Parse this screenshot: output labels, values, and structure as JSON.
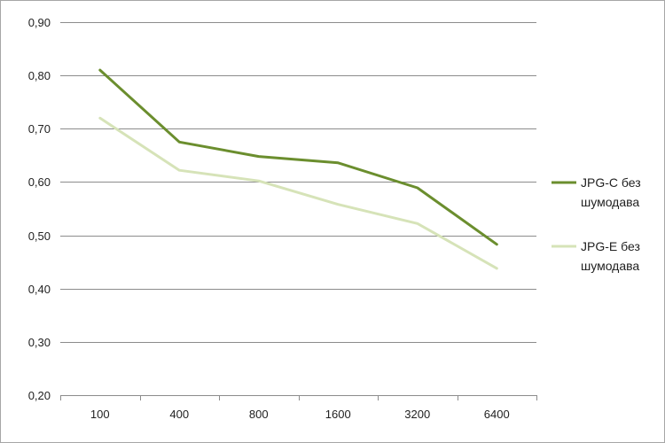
{
  "chart_data": {
    "type": "line",
    "title": "",
    "xlabel": "",
    "ylabel": "",
    "categories": [
      "100",
      "400",
      "800",
      "1600",
      "3200",
      "6400"
    ],
    "ylim": [
      0.2,
      0.9
    ],
    "yticks": [
      "0,20",
      "0,30",
      "0,40",
      "0,50",
      "0,60",
      "0,70",
      "0,80",
      "0,90"
    ],
    "ytick_values": [
      0.2,
      0.3,
      0.4,
      0.5,
      0.6,
      0.7,
      0.8,
      0.9
    ],
    "grid": true,
    "legend_position": "right",
    "series": [
      {
        "legend_lines": [
          "JPG-C без",
          "шумодава"
        ],
        "color": "#6b8e2e",
        "values": [
          0.81,
          0.675,
          0.648,
          0.636,
          0.589,
          0.483
        ]
      },
      {
        "legend_lines": [
          "JPG-E без",
          "шумодава"
        ],
        "color": "#d6e3b8",
        "values": [
          0.72,
          0.622,
          0.602,
          0.558,
          0.522,
          0.438
        ]
      }
    ]
  }
}
